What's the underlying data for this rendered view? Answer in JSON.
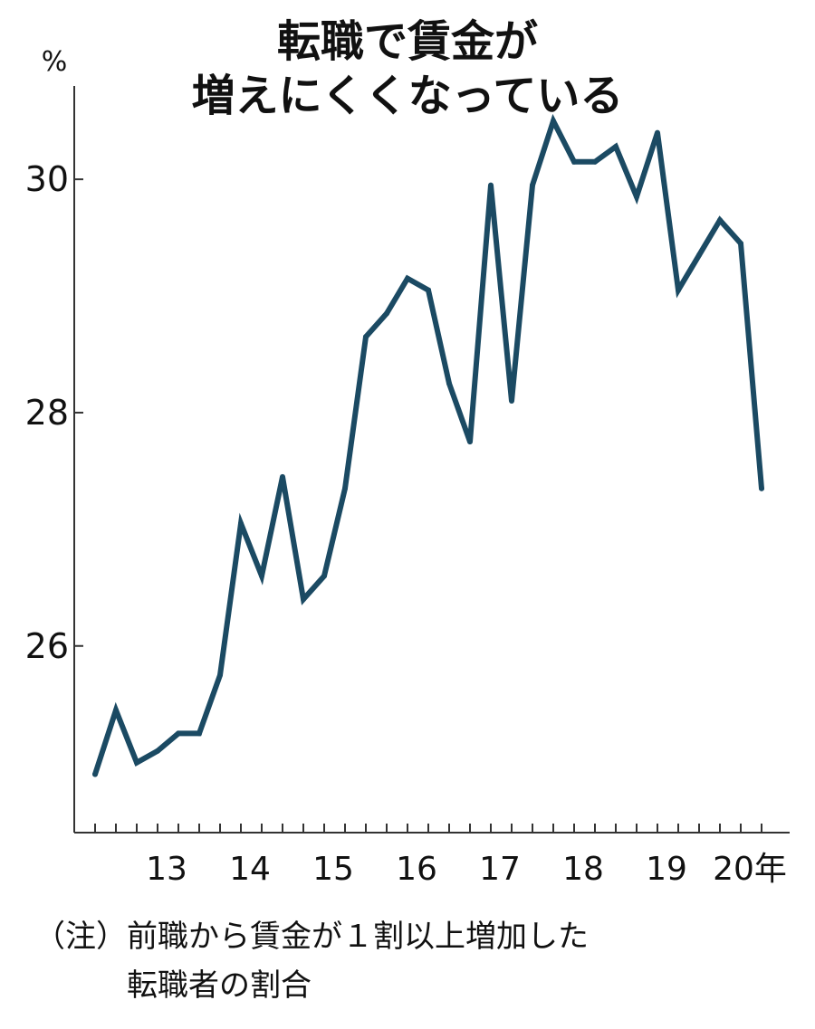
{
  "chart_data": {
    "type": "line",
    "title_lines": [
      "転職で賃金が",
      "増えにくくなっている"
    ],
    "ylabel": "%",
    "ylim": [
      24.4,
      30.8
    ],
    "yticks": [
      26,
      28,
      30
    ],
    "ytick_labels": [
      "26",
      "28",
      "30"
    ],
    "x_tick_positions": [
      3,
      7,
      11,
      15,
      19,
      23,
      27,
      31
    ],
    "x_tick_labels": [
      "13",
      "14",
      "15",
      "16",
      "17",
      "18",
      "19",
      "20年"
    ],
    "series": [
      {
        "name": "前職から賃金が1割以上増加した転職者の割合",
        "color": "#1b4a63",
        "values": [
          24.9,
          25.45,
          25.0,
          25.1,
          25.25,
          25.25,
          25.75,
          27.05,
          26.6,
          27.45,
          26.4,
          26.6,
          27.35,
          28.65,
          28.85,
          29.15,
          29.05,
          28.25,
          27.75,
          29.95,
          28.1,
          29.95,
          30.5,
          30.15,
          30.15,
          30.28,
          29.85,
          30.4,
          29.05,
          29.35,
          29.65,
          29.45,
          27.35
        ]
      }
    ]
  },
  "note_lines": [
    "（注）前職から賃金が１割以上増加した",
    "転職者の割合"
  ]
}
